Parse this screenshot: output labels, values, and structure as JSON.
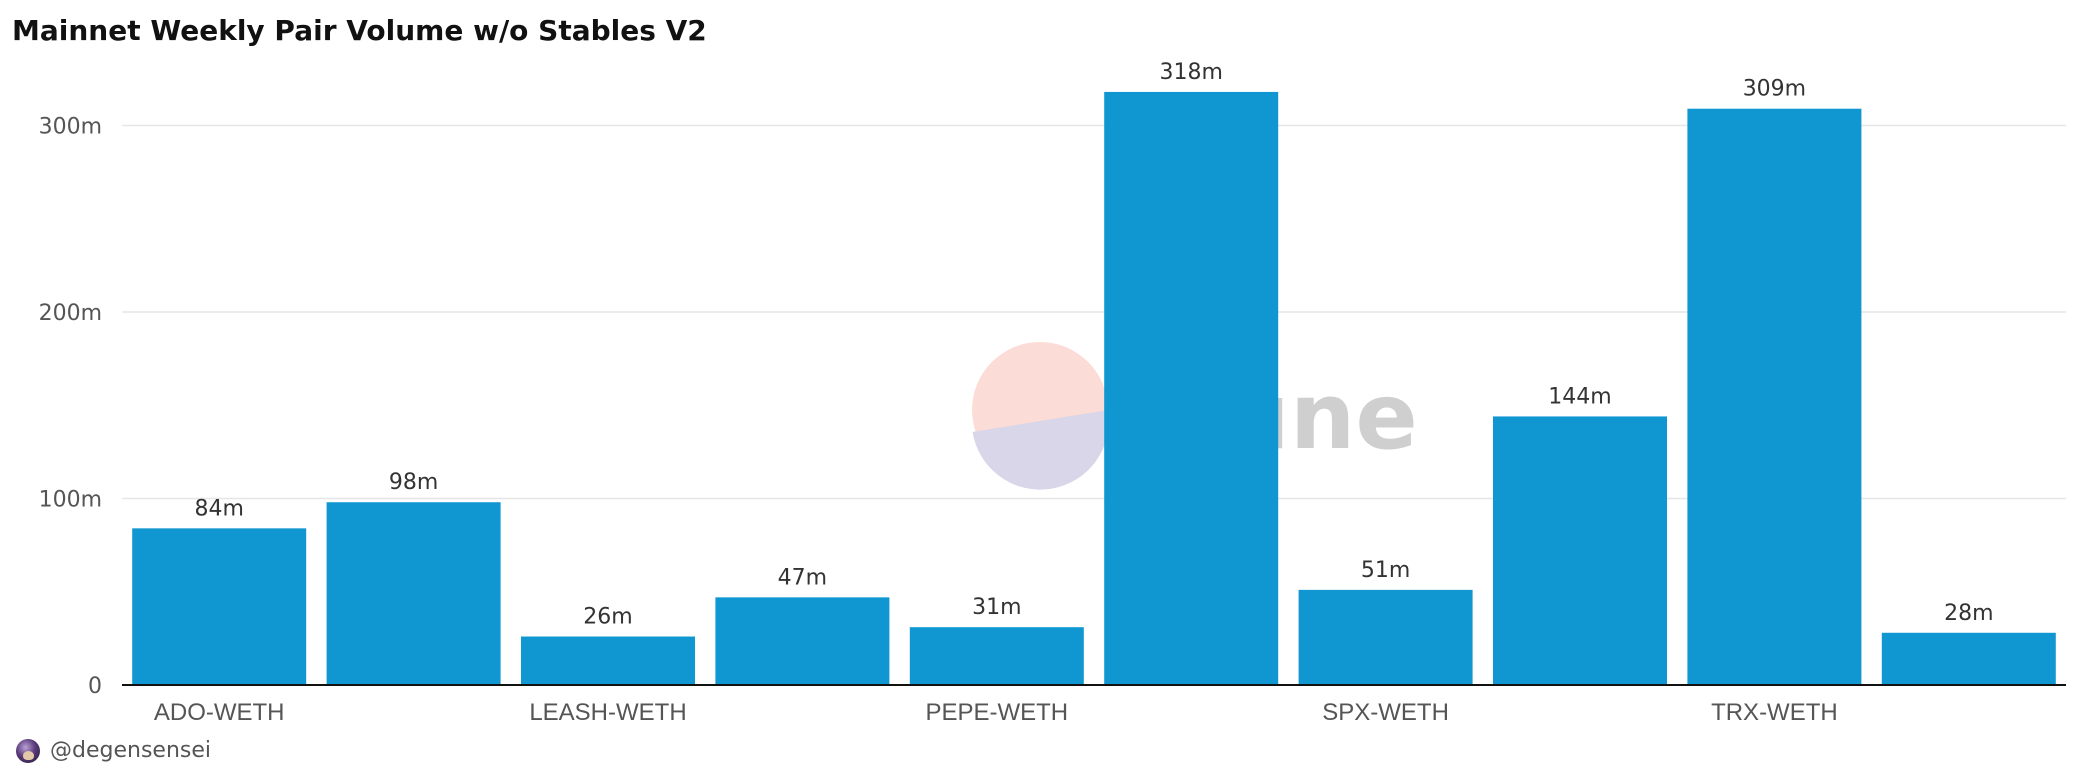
{
  "chart_data": {
    "type": "bar",
    "title": "Mainnet Weekly Pair Volume w/o Stables V2",
    "xlabel": "",
    "ylabel": "",
    "categories": [
      "ADO-WETH",
      "",
      "LEASH-WETH",
      "",
      "PEPE-WETH",
      "",
      "SPX-WETH",
      "",
      "TRX-WETH",
      ""
    ],
    "values": [
      84,
      98,
      26,
      47,
      31,
      318,
      51,
      144,
      309,
      28
    ],
    "value_labels": [
      "84m",
      "98m",
      "26m",
      "47m",
      "31m",
      "318m",
      "51m",
      "144m",
      "309m",
      "28m"
    ],
    "unit": "m",
    "ylim": [
      0,
      330
    ],
    "y_ticks": [
      0,
      100,
      200,
      300
    ],
    "y_tick_labels": [
      "0",
      "100m",
      "200m",
      "300m"
    ],
    "grid": true,
    "legend": "none",
    "bar_color": "#1097d1"
  },
  "watermark": {
    "text": "Dune",
    "icon": "dune-logo-icon"
  },
  "footer": {
    "author": "@degensensei",
    "avatar_icon": "avatar-icon"
  }
}
